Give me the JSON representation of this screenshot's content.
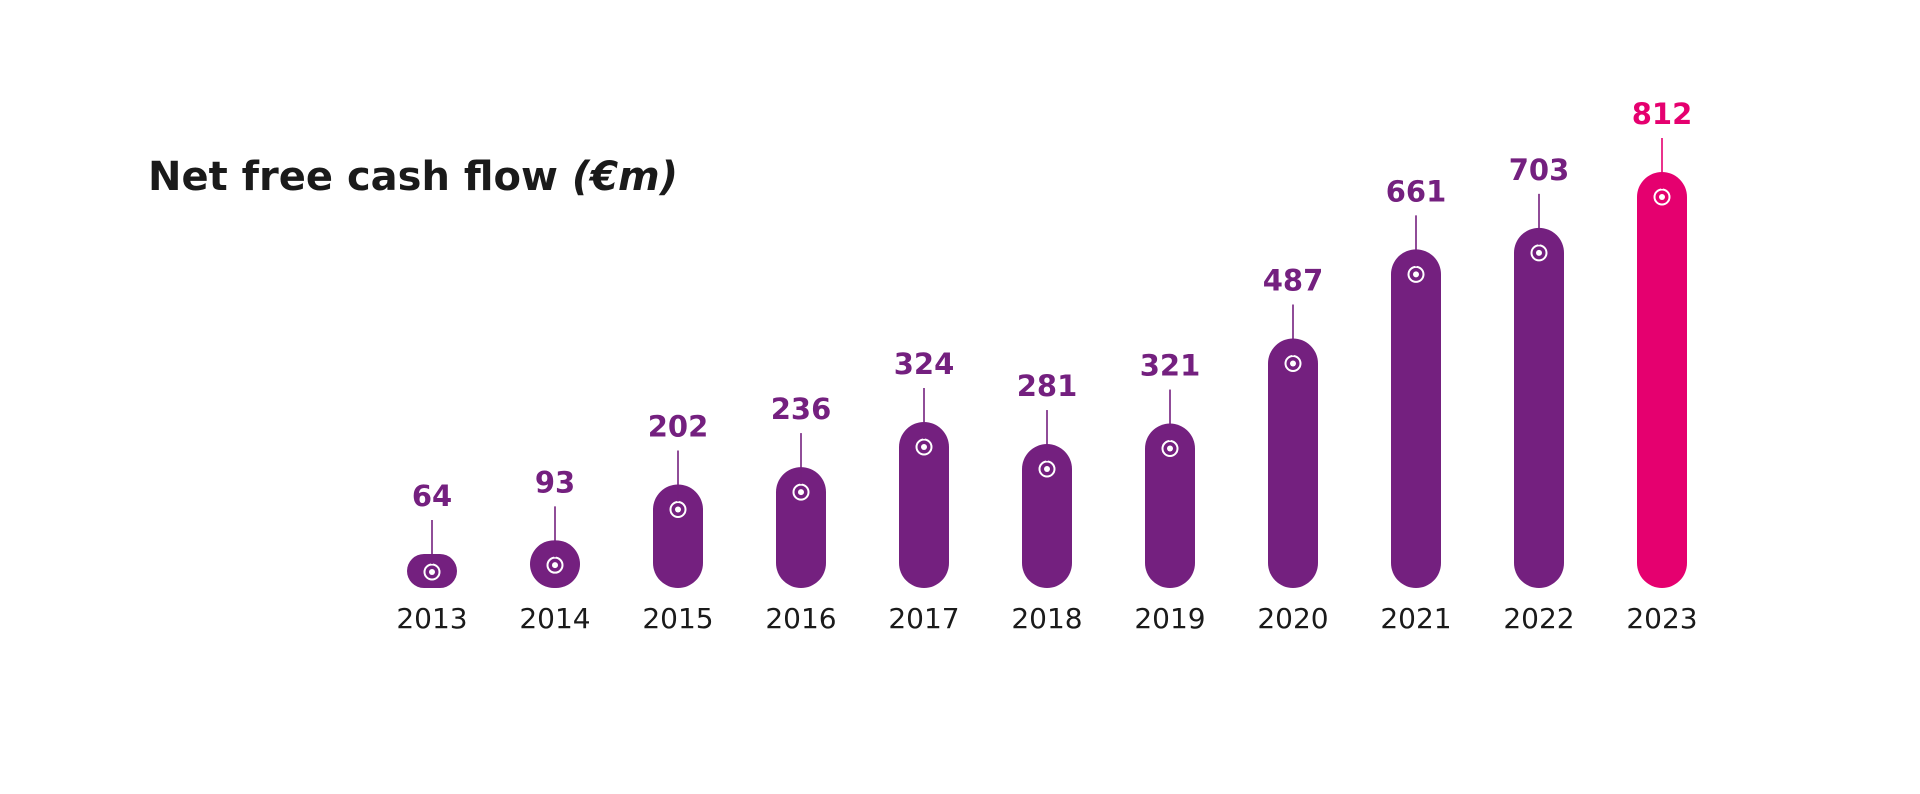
{
  "chart_data": {
    "type": "bar",
    "title": "Net free cash flow",
    "title_unit": "(€m)",
    "categories": [
      "2013",
      "2014",
      "2015",
      "2016",
      "2017",
      "2018",
      "2019",
      "2020",
      "2021",
      "2022",
      "2023"
    ],
    "values": [
      64,
      93,
      202,
      236,
      324,
      281,
      321,
      487,
      661,
      703,
      812
    ],
    "xlabel": "",
    "ylabel": "",
    "ylim": [
      0,
      812
    ],
    "grid": false,
    "legend": "none",
    "colors": {
      "bar": "#74207f",
      "highlight": "#e5006f",
      "title": "#1a1a1a",
      "year_label": "#1a1a1a"
    },
    "highlight_category": "2023",
    "marker": "ringed-dot-on-leader-line"
  }
}
